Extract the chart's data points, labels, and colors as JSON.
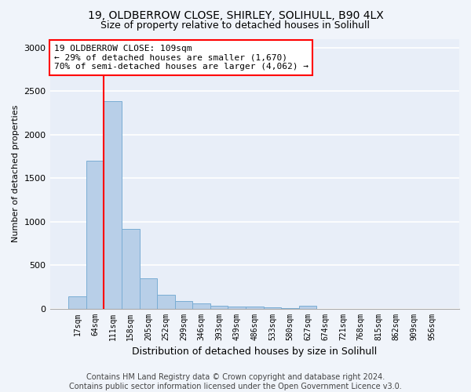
{
  "title_line1": "19, OLDBERROW CLOSE, SHIRLEY, SOLIHULL, B90 4LX",
  "title_line2": "Size of property relative to detached houses in Solihull",
  "xlabel": "Distribution of detached houses by size in Solihull",
  "ylabel": "Number of detached properties",
  "categories": [
    "17sqm",
    "64sqm",
    "111sqm",
    "158sqm",
    "205sqm",
    "252sqm",
    "299sqm",
    "346sqm",
    "393sqm",
    "439sqm",
    "486sqm",
    "533sqm",
    "580sqm",
    "627sqm",
    "674sqm",
    "721sqm",
    "768sqm",
    "815sqm",
    "862sqm",
    "909sqm",
    "956sqm"
  ],
  "values": [
    140,
    1700,
    2390,
    920,
    350,
    160,
    90,
    55,
    35,
    25,
    20,
    10,
    5,
    30,
    0,
    0,
    0,
    0,
    0,
    0,
    0
  ],
  "bar_color": "#b8cfe8",
  "bar_edge_color": "#7aadd4",
  "property_bin_index": 2,
  "annotation_text": "19 OLDBERROW CLOSE: 109sqm\n← 29% of detached houses are smaller (1,670)\n70% of semi-detached houses are larger (4,062) →",
  "annotation_box_color": "white",
  "annotation_box_edge_color": "red",
  "vline_color": "red",
  "ylim": [
    0,
    3100
  ],
  "yticks": [
    0,
    500,
    1000,
    1500,
    2000,
    2500,
    3000
  ],
  "footer_text": "Contains HM Land Registry data © Crown copyright and database right 2024.\nContains public sector information licensed under the Open Government Licence v3.0.",
  "background_color": "#f0f4fa",
  "plot_background_color": "#e8eef8",
  "grid_color": "white",
  "title_fontsize": 10,
  "subtitle_fontsize": 9,
  "footer_fontsize": 7
}
